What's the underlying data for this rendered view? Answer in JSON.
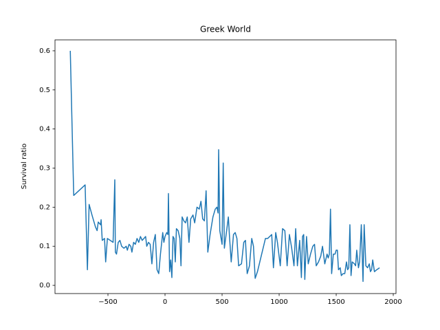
{
  "chart_data": {
    "type": "line",
    "title": "Greek World",
    "y_label": "Survival ratio",
    "color": "#1f77b4",
    "x": [
      -830,
      -800,
      -700,
      -680,
      -665,
      -640,
      -610,
      -595,
      -585,
      -565,
      -560,
      -550,
      -530,
      -520,
      -505,
      -480,
      -455,
      -440,
      -435,
      -425,
      -410,
      -395,
      -380,
      -360,
      -340,
      -330,
      -315,
      -300,
      -290,
      -275,
      -260,
      -245,
      -230,
      -215,
      -200,
      -185,
      -170,
      -160,
      -145,
      -130,
      -115,
      -100,
      -85,
      -70,
      -55,
      -40,
      -20,
      -10,
      0,
      15,
      25,
      30,
      40,
      50,
      60,
      70,
      80,
      90,
      100,
      115,
      130,
      140,
      150,
      165,
      180,
      195,
      210,
      225,
      245,
      260,
      280,
      300,
      315,
      330,
      345,
      360,
      375,
      395,
      420,
      440,
      455,
      465,
      470,
      480,
      500,
      510,
      520,
      540,
      555,
      565,
      580,
      600,
      615,
      630,
      645,
      670,
      690,
      705,
      720,
      740,
      760,
      775,
      790,
      810,
      880,
      900,
      935,
      950,
      970,
      985,
      1010,
      1030,
      1050,
      1070,
      1090,
      1110,
      1130,
      1145,
      1160,
      1180,
      1195,
      1205,
      1215,
      1225,
      1240,
      1255,
      1275,
      1295,
      1310,
      1325,
      1345,
      1365,
      1380,
      1400,
      1420,
      1430,
      1440,
      1450,
      1460,
      1475,
      1490,
      1500,
      1510,
      1520,
      1535,
      1545,
      1560,
      1575,
      1590,
      1600,
      1610,
      1620,
      1630,
      1640,
      1660,
      1670,
      1680,
      1695,
      1705,
      1720,
      1735,
      1745,
      1760,
      1775,
      1790,
      1800,
      1810,
      1820,
      1835,
      1855,
      1880
    ],
    "values": [
      0.6,
      0.23,
      0.257,
      0.04,
      0.207,
      0.18,
      0.15,
      0.14,
      0.162,
      0.155,
      0.168,
      0.115,
      0.12,
      0.06,
      0.12,
      0.115,
      0.11,
      0.27,
      0.085,
      0.08,
      0.11,
      0.115,
      0.1,
      0.095,
      0.1,
      0.09,
      0.105,
      0.1,
      0.085,
      0.11,
      0.105,
      0.12,
      0.11,
      0.125,
      0.115,
      0.12,
      0.125,
      0.1,
      0.11,
      0.105,
      0.055,
      0.11,
      0.13,
      0.04,
      0.03,
      0.08,
      0.135,
      0.11,
      0.125,
      0.135,
      0.13,
      0.235,
      0.035,
      0.065,
      0.02,
      0.125,
      0.12,
      0.06,
      0.145,
      0.14,
      0.12,
      0.05,
      0.175,
      0.165,
      0.16,
      0.175,
      0.11,
      0.17,
      0.18,
      0.16,
      0.2,
      0.195,
      0.215,
      0.17,
      0.165,
      0.242,
      0.085,
      0.13,
      0.175,
      0.195,
      0.2,
      0.185,
      0.347,
      0.14,
      0.105,
      0.313,
      0.095,
      0.14,
      0.175,
      0.125,
      0.06,
      0.13,
      0.135,
      0.12,
      0.05,
      0.055,
      0.11,
      0.115,
      0.03,
      0.05,
      0.12,
      0.1,
      0.018,
      0.035,
      0.12,
      0.12,
      0.13,
      0.045,
      0.135,
      0.11,
      0.05,
      0.145,
      0.14,
      0.05,
      0.13,
      0.095,
      0.05,
      0.145,
      0.05,
      0.115,
      0.02,
      0.125,
      0.13,
      0.015,
      0.125,
      0.055,
      0.08,
      0.1,
      0.105,
      0.05,
      0.06,
      0.075,
      0.1,
      0.055,
      0.08,
      0.07,
      0.08,
      0.195,
      0.03,
      0.08,
      0.08,
      0.09,
      0.09,
      0.04,
      0.045,
      0.025,
      0.03,
      0.03,
      0.06,
      0.04,
      0.045,
      0.155,
      0.025,
      0.06,
      0.055,
      0.05,
      0.09,
      0.045,
      0.06,
      0.155,
      0.01,
      0.155,
      0.05,
      0.045,
      0.055,
      0.035,
      0.04,
      0.065,
      0.035,
      0.04,
      0.045
    ],
    "xlim": [
      -964,
      2024
    ],
    "xticks": [
      {
        "value": -500,
        "label": "−500"
      },
      0,
      500,
      1000,
      1500,
      2000
    ],
    "ylim": [
      -0.021,
      0.628
    ],
    "yticks": [
      {
        "value": 0,
        "label": "0.0"
      },
      0.1,
      0.2,
      0.3,
      0.4,
      0.5,
      0.6
    ]
  }
}
